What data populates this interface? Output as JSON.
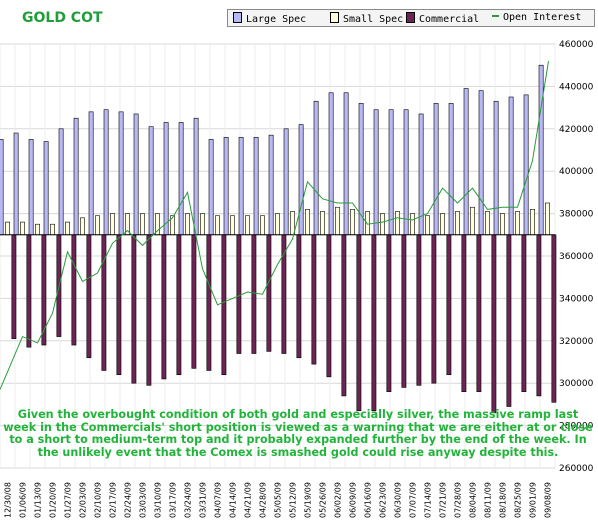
{
  "chart_data": {
    "type": "bar",
    "title": "GOLD COT",
    "legend_position": "top",
    "grid": true,
    "ylim": [
      260000,
      460000
    ],
    "y_ticks": [
      "260000",
      "280000",
      "300000",
      "320000",
      "340000",
      "360000",
      "380000",
      "400000",
      "420000",
      "440000",
      "460000"
    ],
    "zero_line": 370000,
    "categories": [
      "12/30/08",
      "01/06/09",
      "01/13/09",
      "01/20/09",
      "01/27/09",
      "02/03/09",
      "02/10/09",
      "02/17/09",
      "02/24/09",
      "03/03/09",
      "03/10/09",
      "03/17/09",
      "03/24/09",
      "03/31/09",
      "04/07/09",
      "04/14/09",
      "04/21/09",
      "04/28/09",
      "05/05/09",
      "05/12/09",
      "05/19/09",
      "05/26/09",
      "06/02/09",
      "06/09/09",
      "06/16/09",
      "06/23/09",
      "06/30/09",
      "07/07/09",
      "07/14/09",
      "07/21/09",
      "07/28/09",
      "08/04/09",
      "08/11/09",
      "08/18/09",
      "08/25/09",
      "09/01/09",
      "09/08/09"
    ],
    "series": [
      {
        "name": "Large Spec",
        "color": "#b8b8f4",
        "values": [
          415000,
          418000,
          415000,
          414000,
          420000,
          425000,
          428000,
          429000,
          428000,
          427000,
          421000,
          423000,
          423000,
          425000,
          415000,
          416000,
          416000,
          416000,
          417000,
          420000,
          422000,
          433000,
          437000,
          437000,
          432000,
          429000,
          429000,
          429000,
          427000,
          432000,
          432000,
          439000,
          438000,
          433000,
          435000,
          436000,
          450000
        ]
      },
      {
        "name": "Small Spec",
        "color": "#ffffe0",
        "values": [
          376000,
          376000,
          375000,
          375000,
          376000,
          378000,
          379000,
          380000,
          380000,
          380000,
          380000,
          379000,
          380000,
          380000,
          379000,
          379000,
          379000,
          379000,
          380000,
          381000,
          382000,
          381000,
          383000,
          382000,
          381000,
          380000,
          381000,
          380000,
          379000,
          380000,
          381000,
          383000,
          381000,
          380000,
          381000,
          382000,
          385000
        ]
      },
      {
        "name": "Commercial",
        "color": "#6b2454",
        "values": [
          321000,
          317000,
          318000,
          322000,
          318000,
          312000,
          306000,
          304000,
          300000,
          299000,
          302000,
          304000,
          307000,
          306000,
          304000,
          314000,
          314000,
          315000,
          314000,
          312000,
          309000,
          303000,
          294000,
          287000,
          287000,
          296000,
          298000,
          299000,
          300000,
          304000,
          296000,
          296000,
          286000,
          289000,
          296000,
          294000,
          291000
        ]
      },
      {
        "name": "Open Interest",
        "color": "#2a9d3a",
        "values": [
          297000,
          322000,
          319000,
          333000,
          362000,
          348000,
          352000,
          366000,
          372000,
          365000,
          372000,
          378000,
          390000,
          354000,
          337000,
          340000,
          343000,
          342000,
          356000,
          368000,
          395000,
          387000,
          385000,
          385000,
          375000,
          376000,
          378000,
          377000,
          380000,
          392000,
          385000,
          392000,
          382000,
          383000,
          383000,
          405000,
          452000
        ]
      }
    ],
    "annotation": "Given the overbought condition of both gold and especially silver, the massive ramp last week in the Commercials' short position is viewed as a warning that we are either at or close to a short to medium-term top and it probably expanded further by the end of the week. In the unlikely event that the Comex is smashed gold could rise anyway despite this."
  }
}
